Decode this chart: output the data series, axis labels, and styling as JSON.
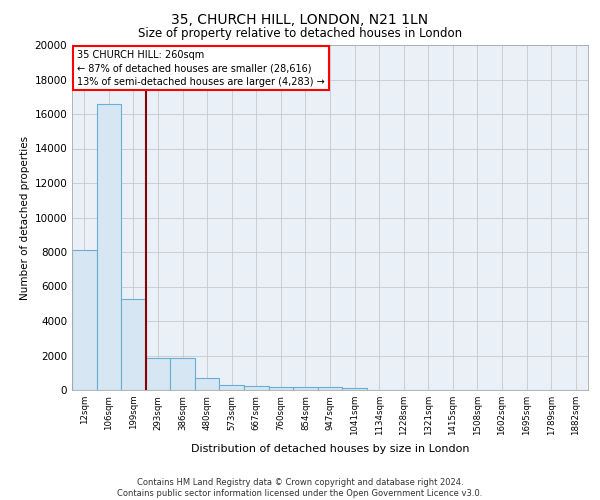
{
  "title_line1": "35, CHURCH HILL, LONDON, N21 1LN",
  "title_line2": "Size of property relative to detached houses in London",
  "xlabel": "Distribution of detached houses by size in London",
  "ylabel": "Number of detached properties",
  "bar_color": "#d6e6f2",
  "bar_edge_color": "#6aaed6",
  "background_color": "#eaf0f8",
  "annotation_text": "35 CHURCH HILL: 260sqm\n← 87% of detached houses are smaller (28,616)\n13% of semi-detached houses are larger (4,283) →",
  "vline_color": "#8b0000",
  "categories": [
    "12sqm",
    "106sqm",
    "199sqm",
    "293sqm",
    "386sqm",
    "480sqm",
    "573sqm",
    "667sqm",
    "760sqm",
    "854sqm",
    "947sqm",
    "1041sqm",
    "1134sqm",
    "1228sqm",
    "1321sqm",
    "1415sqm",
    "1508sqm",
    "1602sqm",
    "1695sqm",
    "1789sqm",
    "1882sqm"
  ],
  "values": [
    8100,
    16600,
    5300,
    1850,
    1850,
    700,
    290,
    220,
    190,
    155,
    150,
    130,
    20,
    15,
    10,
    8,
    5,
    5,
    3,
    3,
    2
  ],
  "ylim": [
    0,
    20000
  ],
  "yticks": [
    0,
    2000,
    4000,
    6000,
    8000,
    10000,
    12000,
    14000,
    16000,
    18000,
    20000
  ],
  "footnote": "Contains HM Land Registry data © Crown copyright and database right 2024.\nContains public sector information licensed under the Open Government Licence v3.0.",
  "grid_color": "#c8c8c8",
  "title_fontsize": 10,
  "subtitle_fontsize": 8.5
}
